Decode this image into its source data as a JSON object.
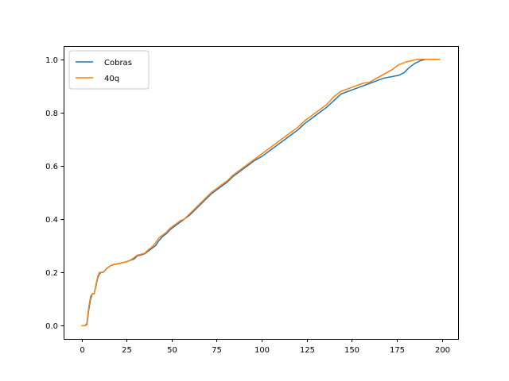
{
  "chart_data": {
    "type": "line",
    "title": "",
    "xlabel": "",
    "ylabel": "",
    "xlim": [
      -9.95,
      208.95
    ],
    "ylim": [
      -0.05,
      1.05
    ],
    "xticks": [
      0,
      25,
      50,
      75,
      100,
      125,
      150,
      175,
      200
    ],
    "xtick_labels": [
      "0",
      "25",
      "50",
      "75",
      "100",
      "125",
      "150",
      "175",
      "200"
    ],
    "yticks": [
      0.0,
      0.2,
      0.4,
      0.6,
      0.8,
      1.0
    ],
    "ytick_labels": [
      "0.0",
      "0.2",
      "0.4",
      "0.6",
      "0.8",
      "1.0"
    ],
    "grid": false,
    "legend_position": "upper-left",
    "series": [
      {
        "name": "Cobras",
        "color": "#1f77b4",
        "points": [
          [
            0,
            0.0
          ],
          [
            2,
            0.0
          ],
          [
            3,
            0.005
          ],
          [
            4,
            0.06
          ],
          [
            5,
            0.1
          ],
          [
            6,
            0.12
          ],
          [
            7,
            0.12
          ],
          [
            8,
            0.15
          ],
          [
            9,
            0.18
          ],
          [
            10,
            0.195
          ],
          [
            11,
            0.2
          ],
          [
            12,
            0.2
          ],
          [
            14,
            0.215
          ],
          [
            16,
            0.225
          ],
          [
            18,
            0.23
          ],
          [
            20,
            0.232
          ],
          [
            22,
            0.235
          ],
          [
            25,
            0.24
          ],
          [
            27,
            0.245
          ],
          [
            29,
            0.25
          ],
          [
            31,
            0.262
          ],
          [
            33,
            0.265
          ],
          [
            35,
            0.27
          ],
          [
            37,
            0.28
          ],
          [
            39,
            0.29
          ],
          [
            41,
            0.3
          ],
          [
            43,
            0.32
          ],
          [
            45,
            0.335
          ],
          [
            47,
            0.345
          ],
          [
            49,
            0.36
          ],
          [
            51,
            0.37
          ],
          [
            53,
            0.38
          ],
          [
            55,
            0.39
          ],
          [
            57,
            0.4
          ],
          [
            60,
            0.415
          ],
          [
            63,
            0.435
          ],
          [
            66,
            0.455
          ],
          [
            69,
            0.475
          ],
          [
            72,
            0.495
          ],
          [
            75,
            0.51
          ],
          [
            78,
            0.525
          ],
          [
            81,
            0.54
          ],
          [
            84,
            0.56
          ],
          [
            87,
            0.575
          ],
          [
            90,
            0.59
          ],
          [
            93,
            0.605
          ],
          [
            96,
            0.62
          ],
          [
            100,
            0.635
          ],
          [
            104,
            0.655
          ],
          [
            108,
            0.675
          ],
          [
            112,
            0.695
          ],
          [
            116,
            0.715
          ],
          [
            120,
            0.735
          ],
          [
            124,
            0.76
          ],
          [
            128,
            0.78
          ],
          [
            132,
            0.8
          ],
          [
            136,
            0.82
          ],
          [
            140,
            0.845
          ],
          [
            144,
            0.87
          ],
          [
            148,
            0.88
          ],
          [
            152,
            0.89
          ],
          [
            156,
            0.9
          ],
          [
            160,
            0.91
          ],
          [
            164,
            0.92
          ],
          [
            168,
            0.93
          ],
          [
            172,
            0.935
          ],
          [
            176,
            0.94
          ],
          [
            179,
            0.95
          ],
          [
            182,
            0.97
          ],
          [
            185,
            0.985
          ],
          [
            188,
            0.995
          ],
          [
            191,
            1.0
          ],
          [
            195,
            1.0
          ],
          [
            199,
            1.0
          ]
        ]
      },
      {
        "name": "40q",
        "color": "#ff7f0e",
        "points": [
          [
            0,
            0.0
          ],
          [
            2,
            0.0
          ],
          [
            3,
            0.01
          ],
          [
            4,
            0.07
          ],
          [
            5,
            0.11
          ],
          [
            6,
            0.12
          ],
          [
            7,
            0.12
          ],
          [
            8,
            0.155
          ],
          [
            9,
            0.185
          ],
          [
            10,
            0.2
          ],
          [
            11,
            0.2
          ],
          [
            12,
            0.2
          ],
          [
            14,
            0.215
          ],
          [
            16,
            0.225
          ],
          [
            18,
            0.23
          ],
          [
            20,
            0.232
          ],
          [
            22,
            0.235
          ],
          [
            25,
            0.24
          ],
          [
            27,
            0.245
          ],
          [
            29,
            0.255
          ],
          [
            31,
            0.265
          ],
          [
            33,
            0.268
          ],
          [
            35,
            0.272
          ],
          [
            37,
            0.285
          ],
          [
            39,
            0.295
          ],
          [
            41,
            0.31
          ],
          [
            43,
            0.33
          ],
          [
            45,
            0.34
          ],
          [
            47,
            0.35
          ],
          [
            49,
            0.365
          ],
          [
            51,
            0.375
          ],
          [
            53,
            0.385
          ],
          [
            55,
            0.395
          ],
          [
            57,
            0.4
          ],
          [
            60,
            0.42
          ],
          [
            63,
            0.44
          ],
          [
            66,
            0.46
          ],
          [
            69,
            0.48
          ],
          [
            72,
            0.5
          ],
          [
            75,
            0.515
          ],
          [
            78,
            0.53
          ],
          [
            81,
            0.545
          ],
          [
            84,
            0.565
          ],
          [
            87,
            0.58
          ],
          [
            90,
            0.595
          ],
          [
            93,
            0.61
          ],
          [
            96,
            0.625
          ],
          [
            100,
            0.645
          ],
          [
            104,
            0.665
          ],
          [
            108,
            0.685
          ],
          [
            112,
            0.705
          ],
          [
            116,
            0.725
          ],
          [
            120,
            0.745
          ],
          [
            124,
            0.77
          ],
          [
            128,
            0.79
          ],
          [
            132,
            0.81
          ],
          [
            136,
            0.83
          ],
          [
            140,
            0.86
          ],
          [
            144,
            0.88
          ],
          [
            148,
            0.89
          ],
          [
            152,
            0.9
          ],
          [
            156,
            0.91
          ],
          [
            160,
            0.915
          ],
          [
            164,
            0.93
          ],
          [
            168,
            0.945
          ],
          [
            172,
            0.96
          ],
          [
            176,
            0.98
          ],
          [
            180,
            0.99
          ],
          [
            183,
            0.995
          ],
          [
            186,
            1.0
          ],
          [
            190,
            1.0
          ],
          [
            195,
            1.0
          ],
          [
            199,
            1.0
          ]
        ]
      }
    ]
  }
}
